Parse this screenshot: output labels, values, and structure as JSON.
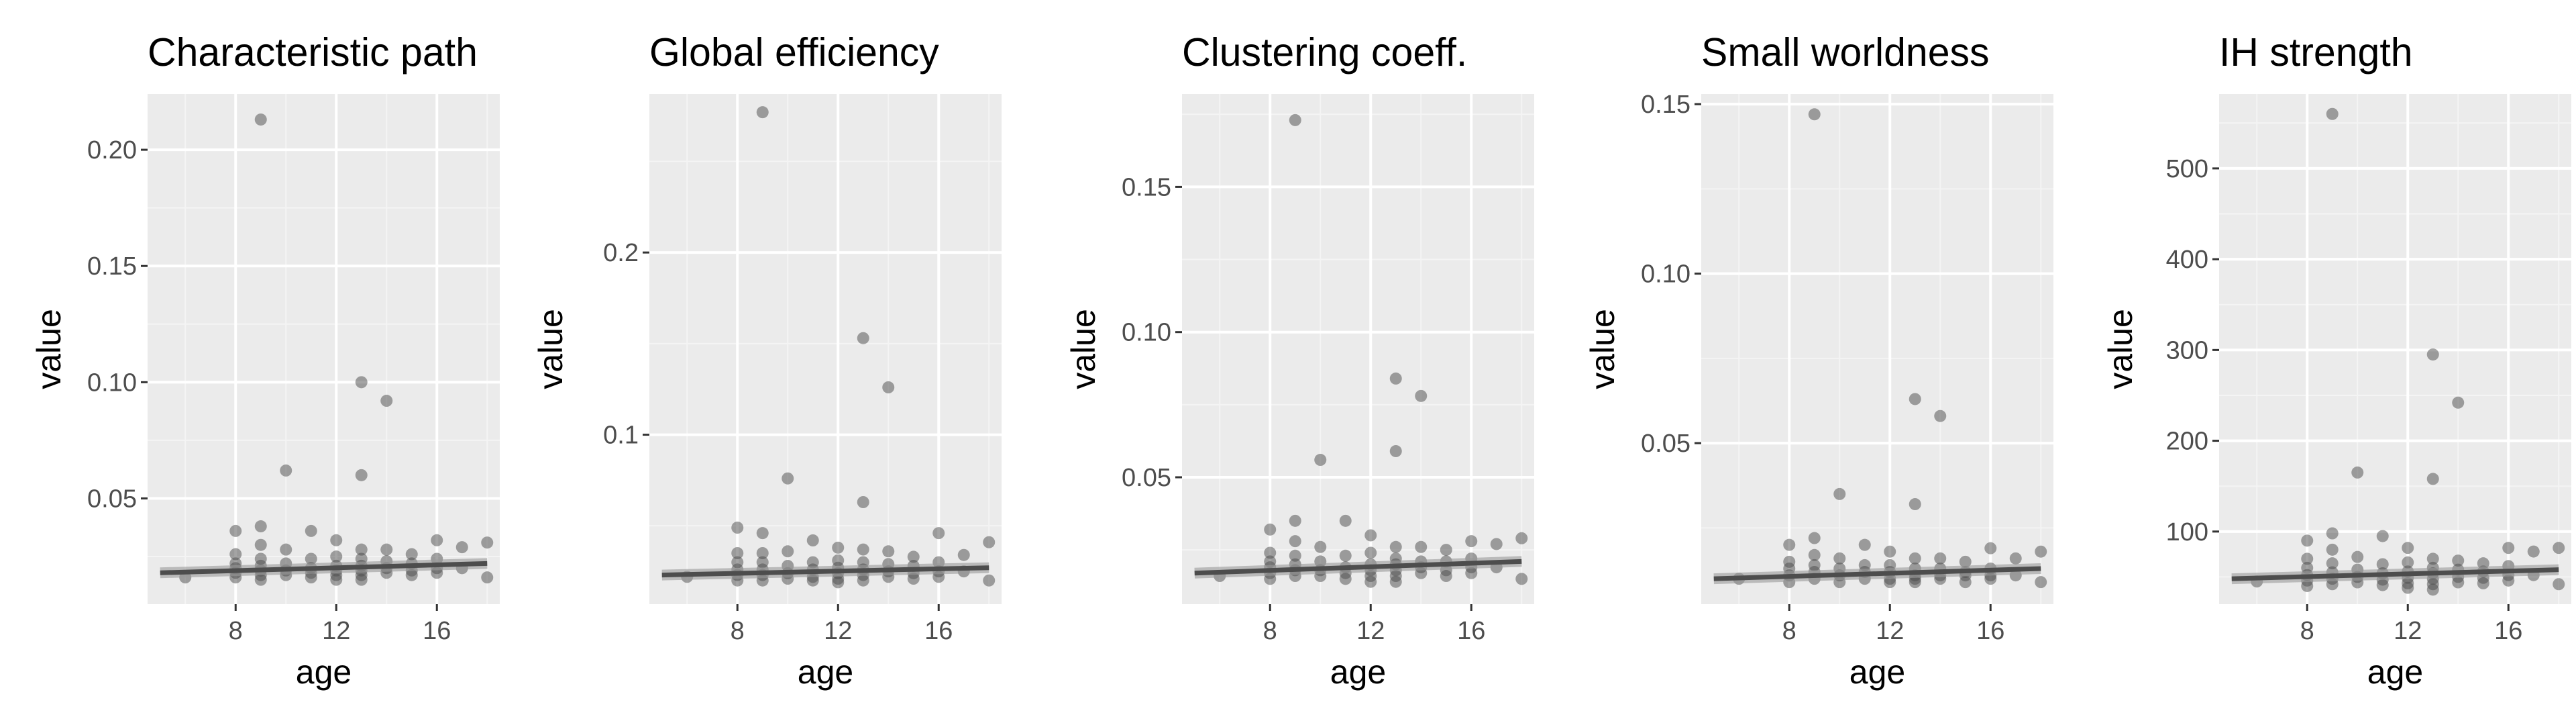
{
  "colors": {
    "panel_background": "#ebebeb",
    "grid_major": "#ffffff",
    "grid_minor": "#f4f4f4",
    "point": "#4a4a4a",
    "fit_line": "#4d4d4d",
    "tick": "#333333",
    "tick_label": "#4d4d4d"
  },
  "chart_data": [
    {
      "type": "scatter",
      "title": "Characteristic path",
      "xlabel": "age",
      "ylabel": "value",
      "xlim": [
        4.5,
        18.5
      ],
      "ylim": [
        0.0045,
        0.224
      ],
      "x_ticks": [
        8,
        12,
        16
      ],
      "x_tick_labels": [
        "8",
        "12",
        "16"
      ],
      "y_ticks": [
        0.05,
        0.1,
        0.15,
        0.2
      ],
      "y_tick_labels": [
        "0.05",
        "0.10",
        "0.15",
        "0.20"
      ],
      "grid": true,
      "points": [
        [
          6,
          0.016
        ],
        [
          8,
          0.036
        ],
        [
          8,
          0.026
        ],
        [
          8,
          0.022
        ],
        [
          8,
          0.02
        ],
        [
          8,
          0.018
        ],
        [
          8,
          0.016
        ],
        [
          9,
          0.213
        ],
        [
          9,
          0.038
        ],
        [
          9,
          0.03
        ],
        [
          9,
          0.024
        ],
        [
          9,
          0.021
        ],
        [
          9,
          0.019
        ],
        [
          9,
          0.017
        ],
        [
          9,
          0.015
        ],
        [
          10,
          0.062
        ],
        [
          10,
          0.028
        ],
        [
          10,
          0.022
        ],
        [
          10,
          0.019
        ],
        [
          10,
          0.017
        ],
        [
          11,
          0.036
        ],
        [
          11,
          0.024
        ],
        [
          11,
          0.02
        ],
        [
          11,
          0.018
        ],
        [
          11,
          0.016
        ],
        [
          12,
          0.032
        ],
        [
          12,
          0.025
        ],
        [
          12,
          0.021
        ],
        [
          12,
          0.019
        ],
        [
          12,
          0.017
        ],
        [
          12,
          0.015
        ],
        [
          13,
          0.1
        ],
        [
          13,
          0.06
        ],
        [
          13,
          0.028
        ],
        [
          13,
          0.024
        ],
        [
          13,
          0.021
        ],
        [
          13,
          0.019
        ],
        [
          13,
          0.017
        ],
        [
          13,
          0.015
        ],
        [
          14,
          0.092
        ],
        [
          14,
          0.028
        ],
        [
          14,
          0.023
        ],
        [
          14,
          0.02
        ],
        [
          14,
          0.018
        ],
        [
          15,
          0.026
        ],
        [
          15,
          0.022
        ],
        [
          15,
          0.019
        ],
        [
          15,
          0.017
        ],
        [
          16,
          0.032
        ],
        [
          16,
          0.024
        ],
        [
          16,
          0.02
        ],
        [
          16,
          0.018
        ],
        [
          17,
          0.029
        ],
        [
          17,
          0.02
        ],
        [
          18,
          0.031
        ],
        [
          18,
          0.016
        ]
      ],
      "fit": {
        "x": [
          5,
          18
        ],
        "y": [
          0.018,
          0.022
        ]
      }
    },
    {
      "type": "scatter",
      "title": "Global efficiency",
      "xlabel": "age",
      "ylabel": "value",
      "xlim": [
        4.5,
        18.5
      ],
      "ylim": [
        0.007,
        0.287
      ],
      "x_ticks": [
        8,
        12,
        16
      ],
      "x_tick_labels": [
        "8",
        "12",
        "16"
      ],
      "y_ticks": [
        0.1,
        0.2
      ],
      "y_tick_labels": [
        "0.1",
        "0.2"
      ],
      "grid": true,
      "points": [
        [
          6,
          0.022
        ],
        [
          8,
          0.049
        ],
        [
          8,
          0.035
        ],
        [
          8,
          0.03
        ],
        [
          8,
          0.026
        ],
        [
          8,
          0.023
        ],
        [
          8,
          0.02
        ],
        [
          9,
          0.277
        ],
        [
          9,
          0.046
        ],
        [
          9,
          0.035
        ],
        [
          9,
          0.03
        ],
        [
          9,
          0.026
        ],
        [
          9,
          0.023
        ],
        [
          9,
          0.02
        ],
        [
          10,
          0.076
        ],
        [
          10,
          0.036
        ],
        [
          10,
          0.028
        ],
        [
          10,
          0.024
        ],
        [
          10,
          0.021
        ],
        [
          11,
          0.042
        ],
        [
          11,
          0.03
        ],
        [
          11,
          0.026
        ],
        [
          11,
          0.022
        ],
        [
          11,
          0.02
        ],
        [
          12,
          0.038
        ],
        [
          12,
          0.031
        ],
        [
          12,
          0.027
        ],
        [
          12,
          0.024
        ],
        [
          12,
          0.021
        ],
        [
          12,
          0.019
        ],
        [
          13,
          0.153
        ],
        [
          13,
          0.063
        ],
        [
          13,
          0.037
        ],
        [
          13,
          0.03
        ],
        [
          13,
          0.026
        ],
        [
          13,
          0.023
        ],
        [
          13,
          0.02
        ],
        [
          14,
          0.126
        ],
        [
          14,
          0.036
        ],
        [
          14,
          0.029
        ],
        [
          14,
          0.025
        ],
        [
          14,
          0.022
        ],
        [
          15,
          0.033
        ],
        [
          15,
          0.028
        ],
        [
          15,
          0.024
        ],
        [
          15,
          0.021
        ],
        [
          16,
          0.046
        ],
        [
          16,
          0.03
        ],
        [
          16,
          0.025
        ],
        [
          16,
          0.022
        ],
        [
          17,
          0.034
        ],
        [
          17,
          0.025
        ],
        [
          18,
          0.041
        ],
        [
          18,
          0.02
        ]
      ],
      "fit": {
        "x": [
          5,
          18
        ],
        "y": [
          0.023,
          0.027
        ]
      }
    },
    {
      "type": "scatter",
      "title": "Clustering coeff.",
      "xlabel": "age",
      "ylabel": "value",
      "xlim": [
        4.5,
        18.5
      ],
      "ylim": [
        0.0063,
        0.182
      ],
      "x_ticks": [
        8,
        12,
        16
      ],
      "x_tick_labels": [
        "8",
        "12",
        "16"
      ],
      "y_ticks": [
        0.05,
        0.1,
        0.15
      ],
      "y_tick_labels": [
        "0.05",
        "0.10",
        "0.15"
      ],
      "grid": true,
      "points": [
        [
          6,
          0.016
        ],
        [
          8,
          0.032
        ],
        [
          8,
          0.024
        ],
        [
          8,
          0.021
        ],
        [
          8,
          0.019
        ],
        [
          8,
          0.017
        ],
        [
          8,
          0.015
        ],
        [
          9,
          0.173
        ],
        [
          9,
          0.035
        ],
        [
          9,
          0.028
        ],
        [
          9,
          0.023
        ],
        [
          9,
          0.02
        ],
        [
          9,
          0.018
        ],
        [
          9,
          0.016
        ],
        [
          10,
          0.056
        ],
        [
          10,
          0.026
        ],
        [
          10,
          0.021
        ],
        [
          10,
          0.018
        ],
        [
          10,
          0.016
        ],
        [
          11,
          0.035
        ],
        [
          11,
          0.023
        ],
        [
          11,
          0.019
        ],
        [
          11,
          0.017
        ],
        [
          11,
          0.015
        ],
        [
          12,
          0.03
        ],
        [
          12,
          0.024
        ],
        [
          12,
          0.02
        ],
        [
          12,
          0.018
        ],
        [
          12,
          0.016
        ],
        [
          12,
          0.014
        ],
        [
          13,
          0.084
        ],
        [
          13,
          0.059
        ],
        [
          13,
          0.026
        ],
        [
          13,
          0.022
        ],
        [
          13,
          0.02
        ],
        [
          13,
          0.018
        ],
        [
          13,
          0.016
        ],
        [
          13,
          0.014
        ],
        [
          14,
          0.078
        ],
        [
          14,
          0.026
        ],
        [
          14,
          0.021
        ],
        [
          14,
          0.019
        ],
        [
          14,
          0.017
        ],
        [
          15,
          0.025
        ],
        [
          15,
          0.021
        ],
        [
          15,
          0.018
        ],
        [
          15,
          0.016
        ],
        [
          16,
          0.028
        ],
        [
          16,
          0.022
        ],
        [
          16,
          0.019
        ],
        [
          16,
          0.017
        ],
        [
          17,
          0.027
        ],
        [
          17,
          0.019
        ],
        [
          18,
          0.029
        ],
        [
          18,
          0.015
        ]
      ],
      "fit": {
        "x": [
          5,
          18
        ],
        "y": [
          0.017,
          0.021
        ]
      }
    },
    {
      "type": "scatter",
      "title": "Small worldness",
      "xlabel": "age",
      "ylabel": "value",
      "xlim": [
        4.5,
        18.5
      ],
      "ylim": [
        0.0025,
        0.153
      ],
      "x_ticks": [
        8,
        12,
        16
      ],
      "x_tick_labels": [
        "8",
        "12",
        "16"
      ],
      "y_ticks": [
        0.05,
        0.1,
        0.15
      ],
      "y_tick_labels": [
        "0.05",
        "0.10",
        "0.15"
      ],
      "grid": true,
      "points": [
        [
          6,
          0.01
        ],
        [
          8,
          0.02
        ],
        [
          8,
          0.015
        ],
        [
          8,
          0.013
        ],
        [
          8,
          0.011
        ],
        [
          8,
          0.009
        ],
        [
          9,
          0.147
        ],
        [
          9,
          0.022
        ],
        [
          9,
          0.017
        ],
        [
          9,
          0.014
        ],
        [
          9,
          0.012
        ],
        [
          9,
          0.01
        ],
        [
          10,
          0.035
        ],
        [
          10,
          0.016
        ],
        [
          10,
          0.013
        ],
        [
          10,
          0.011
        ],
        [
          10,
          0.009
        ],
        [
          11,
          0.02
        ],
        [
          11,
          0.014
        ],
        [
          11,
          0.012
        ],
        [
          11,
          0.01
        ],
        [
          12,
          0.018
        ],
        [
          12,
          0.014
        ],
        [
          12,
          0.012
        ],
        [
          12,
          0.01
        ],
        [
          12,
          0.009
        ],
        [
          13,
          0.063
        ],
        [
          13,
          0.032
        ],
        [
          13,
          0.016
        ],
        [
          13,
          0.013
        ],
        [
          13,
          0.011
        ],
        [
          13,
          0.01
        ],
        [
          13,
          0.009
        ],
        [
          14,
          0.058
        ],
        [
          14,
          0.016
        ],
        [
          14,
          0.013
        ],
        [
          14,
          0.011
        ],
        [
          14,
          0.01
        ],
        [
          15,
          0.015
        ],
        [
          15,
          0.012
        ],
        [
          15,
          0.011
        ],
        [
          15,
          0.009
        ],
        [
          16,
          0.019
        ],
        [
          16,
          0.013
        ],
        [
          16,
          0.011
        ],
        [
          16,
          0.01
        ],
        [
          17,
          0.016
        ],
        [
          17,
          0.011
        ],
        [
          18,
          0.018
        ],
        [
          18,
          0.009
        ]
      ],
      "fit": {
        "x": [
          5,
          18
        ],
        "y": [
          0.01,
          0.013
        ]
      }
    },
    {
      "type": "scatter",
      "title": "IH strength",
      "xlabel": "age",
      "ylabel": "value",
      "xlim": [
        4.5,
        18.5
      ],
      "ylim": [
        20,
        582
      ],
      "x_ticks": [
        8,
        12,
        16
      ],
      "x_tick_labels": [
        "8",
        "12",
        "16"
      ],
      "y_ticks": [
        100,
        200,
        300,
        400,
        500
      ],
      "y_tick_labels": [
        "100",
        "200",
        "300",
        "400",
        "500"
      ],
      "grid": true,
      "points": [
        [
          6,
          45
        ],
        [
          8,
          90
        ],
        [
          8,
          70
        ],
        [
          8,
          60
        ],
        [
          8,
          52
        ],
        [
          8,
          46
        ],
        [
          8,
          40
        ],
        [
          9,
          560
        ],
        [
          9,
          98
        ],
        [
          9,
          80
        ],
        [
          9,
          65
        ],
        [
          9,
          55
        ],
        [
          9,
          48
        ],
        [
          9,
          42
        ],
        [
          10,
          165
        ],
        [
          10,
          72
        ],
        [
          10,
          58
        ],
        [
          10,
          50
        ],
        [
          10,
          44
        ],
        [
          11,
          95
        ],
        [
          11,
          64
        ],
        [
          11,
          54
        ],
        [
          11,
          47
        ],
        [
          11,
          41
        ],
        [
          12,
          82
        ],
        [
          12,
          66
        ],
        [
          12,
          56
        ],
        [
          12,
          49
        ],
        [
          12,
          43
        ],
        [
          12,
          38
        ],
        [
          13,
          295
        ],
        [
          13,
          158
        ],
        [
          13,
          70
        ],
        [
          13,
          60
        ],
        [
          13,
          54
        ],
        [
          13,
          48
        ],
        [
          13,
          42
        ],
        [
          13,
          36
        ],
        [
          14,
          242
        ],
        [
          14,
          68
        ],
        [
          14,
          58
        ],
        [
          14,
          50
        ],
        [
          14,
          44
        ],
        [
          15,
          65
        ],
        [
          15,
          56
        ],
        [
          15,
          49
        ],
        [
          15,
          43
        ],
        [
          16,
          82
        ],
        [
          16,
          62
        ],
        [
          16,
          52
        ],
        [
          16,
          46
        ],
        [
          17,
          78
        ],
        [
          17,
          52
        ],
        [
          18,
          82
        ],
        [
          18,
          42
        ]
      ],
      "fit": {
        "x": [
          5,
          18
        ],
        "y": [
          48,
          58
        ]
      }
    }
  ]
}
